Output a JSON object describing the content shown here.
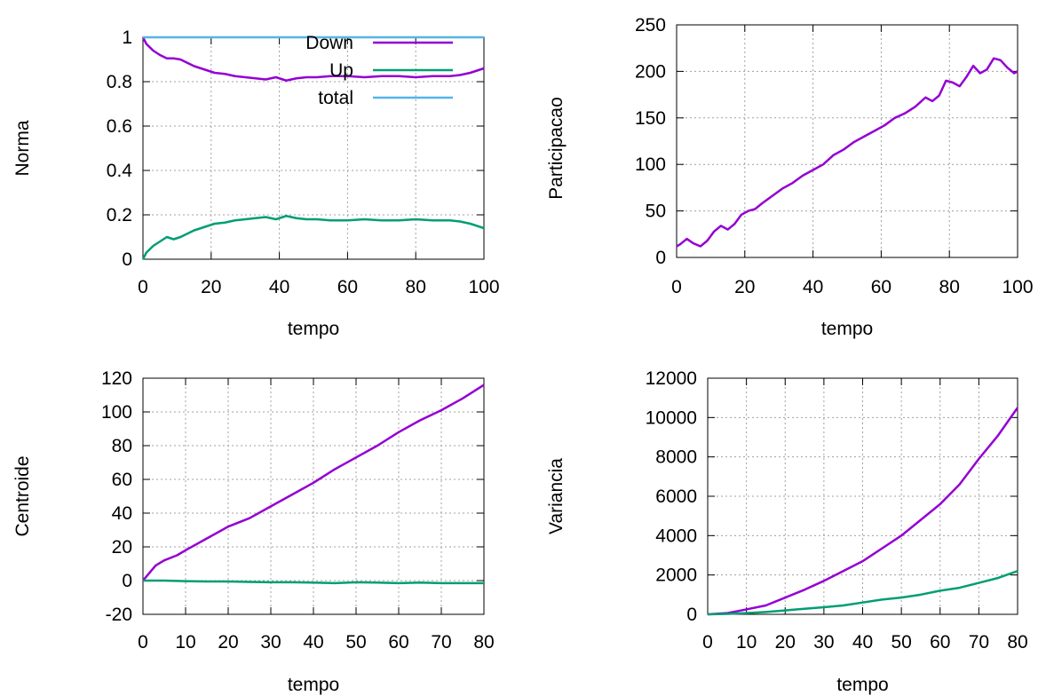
{
  "colors": {
    "purple": "#9400d3",
    "green": "#009e73",
    "cyan": "#56b4e9",
    "grid": "#a0a0a0"
  },
  "chart_data": [
    {
      "type": "line",
      "xlabel": "tempo",
      "ylabel": "Norma",
      "xlim": [
        0,
        100
      ],
      "ylim": [
        0,
        1
      ],
      "xticks": [
        0,
        20,
        40,
        60,
        80,
        100
      ],
      "yticks": [
        0,
        0.2,
        0.4,
        0.6,
        0.8,
        1
      ],
      "ytick_labels": [
        "0",
        "0.2",
        "0.4",
        "0.6",
        "0.8",
        "1"
      ],
      "grid": true,
      "legend": "top-right",
      "series": [
        {
          "name": "Down",
          "color": "#9400d3",
          "x": [
            0,
            1,
            3,
            5,
            7,
            9,
            11,
            13,
            15,
            18,
            21,
            24,
            27,
            30,
            33,
            36,
            39,
            42,
            45,
            48,
            51,
            55,
            60,
            65,
            70,
            75,
            80,
            85,
            90,
            93,
            96,
            98,
            100
          ],
          "y": [
            1.0,
            0.97,
            0.94,
            0.92,
            0.905,
            0.905,
            0.9,
            0.885,
            0.87,
            0.855,
            0.84,
            0.835,
            0.825,
            0.82,
            0.815,
            0.81,
            0.82,
            0.805,
            0.815,
            0.82,
            0.82,
            0.825,
            0.825,
            0.82,
            0.825,
            0.825,
            0.82,
            0.825,
            0.825,
            0.83,
            0.84,
            0.85,
            0.86
          ]
        },
        {
          "name": "Up",
          "color": "#009e73",
          "x": [
            0,
            1,
            3,
            5,
            7,
            9,
            11,
            13,
            15,
            18,
            21,
            24,
            27,
            30,
            33,
            36,
            39,
            42,
            45,
            48,
            51,
            55,
            60,
            65,
            70,
            75,
            80,
            85,
            90,
            93,
            96,
            98,
            100
          ],
          "y": [
            0.0,
            0.03,
            0.06,
            0.08,
            0.1,
            0.09,
            0.1,
            0.115,
            0.13,
            0.145,
            0.16,
            0.165,
            0.175,
            0.18,
            0.185,
            0.19,
            0.18,
            0.195,
            0.185,
            0.18,
            0.18,
            0.175,
            0.175,
            0.18,
            0.175,
            0.175,
            0.18,
            0.175,
            0.175,
            0.17,
            0.16,
            0.15,
            0.14
          ]
        },
        {
          "name": "total",
          "color": "#56b4e9",
          "x": [
            0,
            100
          ],
          "y": [
            1,
            1
          ]
        }
      ]
    },
    {
      "type": "line",
      "xlabel": "tempo",
      "ylabel": "Participacao",
      "xlim": [
        0,
        100
      ],
      "ylim": [
        0,
        250
      ],
      "xticks": [
        0,
        20,
        40,
        60,
        80,
        100
      ],
      "yticks": [
        0,
        50,
        100,
        150,
        200,
        250
      ],
      "ytick_labels": [
        "0",
        "50",
        "100",
        "150",
        "200",
        "250"
      ],
      "grid": true,
      "series": [
        {
          "color": "#9400d3",
          "x": [
            0,
            1,
            3,
            5,
            7,
            9,
            11,
            13,
            15,
            17,
            19,
            21,
            23,
            25,
            28,
            31,
            34,
            37,
            40,
            43,
            46,
            49,
            52,
            55,
            58,
            61,
            64,
            67,
            70,
            73,
            75,
            77,
            79,
            81,
            83,
            85,
            87,
            89,
            91,
            93,
            95,
            97,
            99,
            100
          ],
          "y": [
            12,
            14,
            20,
            15,
            12,
            18,
            28,
            34,
            30,
            36,
            46,
            50,
            52,
            58,
            66,
            74,
            80,
            88,
            94,
            100,
            110,
            116,
            124,
            130,
            136,
            142,
            150,
            155,
            162,
            172,
            168,
            174,
            190,
            188,
            184,
            194,
            206,
            198,
            202,
            214,
            212,
            204,
            198,
            200
          ]
        }
      ]
    },
    {
      "type": "line",
      "xlabel": "tempo",
      "ylabel": "Centroide",
      "xlim": [
        0,
        80
      ],
      "ylim": [
        -20,
        120
      ],
      "xticks": [
        0,
        10,
        20,
        30,
        40,
        50,
        60,
        70,
        80
      ],
      "yticks": [
        -20,
        0,
        20,
        40,
        60,
        80,
        100,
        120
      ],
      "ytick_labels": [
        "-20",
        "0",
        "20",
        "40",
        "60",
        "80",
        "100",
        "120"
      ],
      "grid": true,
      "series": [
        {
          "color": "#9400d3",
          "x": [
            0,
            1,
            2,
            3,
            5,
            8,
            10,
            15,
            20,
            25,
            30,
            35,
            40,
            45,
            50,
            55,
            60,
            65,
            70,
            75,
            80
          ],
          "y": [
            0,
            3,
            6,
            9,
            12,
            15,
            18,
            25,
            32,
            37,
            44,
            51,
            58,
            66,
            73,
            80,
            88,
            95,
            101,
            108,
            116
          ]
        },
        {
          "color": "#009e73",
          "x": [
            0,
            5,
            10,
            15,
            20,
            25,
            30,
            35,
            40,
            45,
            50,
            55,
            60,
            65,
            70,
            75,
            80
          ],
          "y": [
            0,
            0,
            -0.3,
            -0.5,
            -0.5,
            -0.8,
            -1,
            -1,
            -1.2,
            -1.5,
            -1,
            -1.2,
            -1.5,
            -1.2,
            -1.5,
            -1.5,
            -1.5
          ]
        }
      ]
    },
    {
      "type": "line",
      "xlabel": "tempo",
      "ylabel": "Variancia",
      "xlim": [
        0,
        80
      ],
      "ylim": [
        0,
        12000
      ],
      "xticks": [
        0,
        10,
        20,
        30,
        40,
        50,
        60,
        70,
        80
      ],
      "yticks": [
        0,
        2000,
        4000,
        6000,
        8000,
        10000,
        12000
      ],
      "ytick_labels": [
        "0",
        "2000",
        "4000",
        "6000",
        "8000",
        "10000",
        "12000"
      ],
      "grid": true,
      "series": [
        {
          "color": "#9400d3",
          "x": [
            0,
            5,
            10,
            15,
            20,
            25,
            30,
            35,
            40,
            45,
            50,
            55,
            60,
            65,
            70,
            75,
            80
          ],
          "y": [
            0,
            60,
            250,
            450,
            850,
            1250,
            1700,
            2200,
            2700,
            3350,
            4000,
            4800,
            5600,
            6600,
            7900,
            9100,
            10500
          ]
        },
        {
          "color": "#009e73",
          "x": [
            0,
            5,
            10,
            15,
            20,
            25,
            30,
            35,
            40,
            45,
            50,
            55,
            60,
            65,
            70,
            75,
            80
          ],
          "y": [
            0,
            20,
            60,
            120,
            200,
            280,
            360,
            450,
            600,
            750,
            850,
            1000,
            1200,
            1350,
            1600,
            1850,
            2200
          ]
        }
      ]
    }
  ]
}
